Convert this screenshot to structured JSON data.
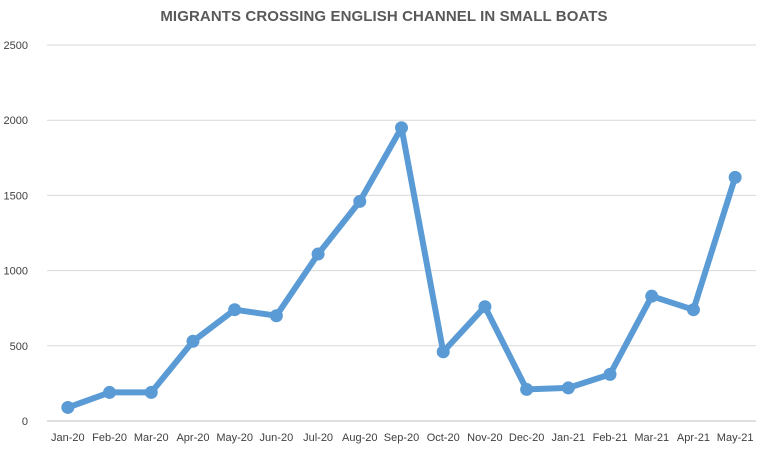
{
  "chart_data": {
    "type": "line",
    "title": "MIGRANTS CROSSING ENGLISH CHANNEL IN SMALL BOATS",
    "xlabel": "",
    "ylabel": "",
    "categories": [
      "Jan-20",
      "Feb-20",
      "Mar-20",
      "Apr-20",
      "May-20",
      "Jun-20",
      "Jul-20",
      "Aug-20",
      "Sep-20",
      "Oct-20",
      "Nov-20",
      "Dec-20",
      "Jan-21",
      "Feb-21",
      "Mar-21",
      "Apr-21",
      "May-21"
    ],
    "series": [
      {
        "values": [
          90,
          190,
          190,
          530,
          740,
          700,
          1110,
          1460,
          1950,
          460,
          760,
          210,
          220,
          310,
          830,
          740,
          1620
        ]
      }
    ],
    "ylim": [
      0,
      2500
    ],
    "yticks": [
      0,
      500,
      1000,
      1500,
      2000,
      2500
    ],
    "grid": "horizontal",
    "legend": "none",
    "colors": {
      "line": "#5b9bd5",
      "grid": "#d9d9d9",
      "axis": "#bfbfbf",
      "title": "#595959",
      "tick": "#404040"
    }
  }
}
